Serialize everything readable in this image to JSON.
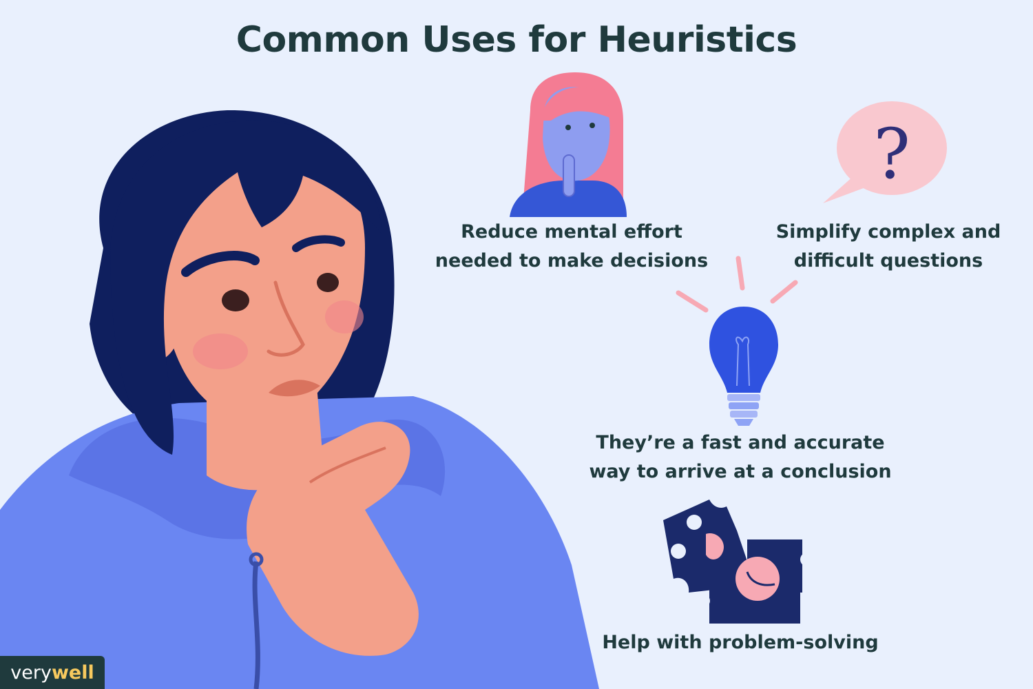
{
  "title": "Common Uses for Heuristics",
  "uses": [
    {
      "lines": [
        "Reduce mental effort",
        "needed to make decisions"
      ],
      "icon": "thinking-woman-icon"
    },
    {
      "lines": [
        "Simplify complex and",
        "difficult questions"
      ],
      "icon": "question-bubble-icon"
    },
    {
      "lines": [
        "They’re a fast and accurate",
        "way to arrive at a conclusion"
      ],
      "icon": "lightbulb-icon"
    },
    {
      "lines": [
        "Help with problem-solving"
      ],
      "icon": "puzzle-pieces-icon"
    }
  ],
  "speech_bubble_mark": "?",
  "logo": {
    "part1": "very",
    "part2": "well"
  },
  "colors": {
    "background": "#e9f0fd",
    "text": "#1f3a3d",
    "hair": "#0f1f5e",
    "hoodie": "#6a86f2",
    "skin": "#f3a08a",
    "accent_pink": "#f7a9b4",
    "bulb_blue": "#2f52e0",
    "logo_yellow": "#f7c95e"
  }
}
